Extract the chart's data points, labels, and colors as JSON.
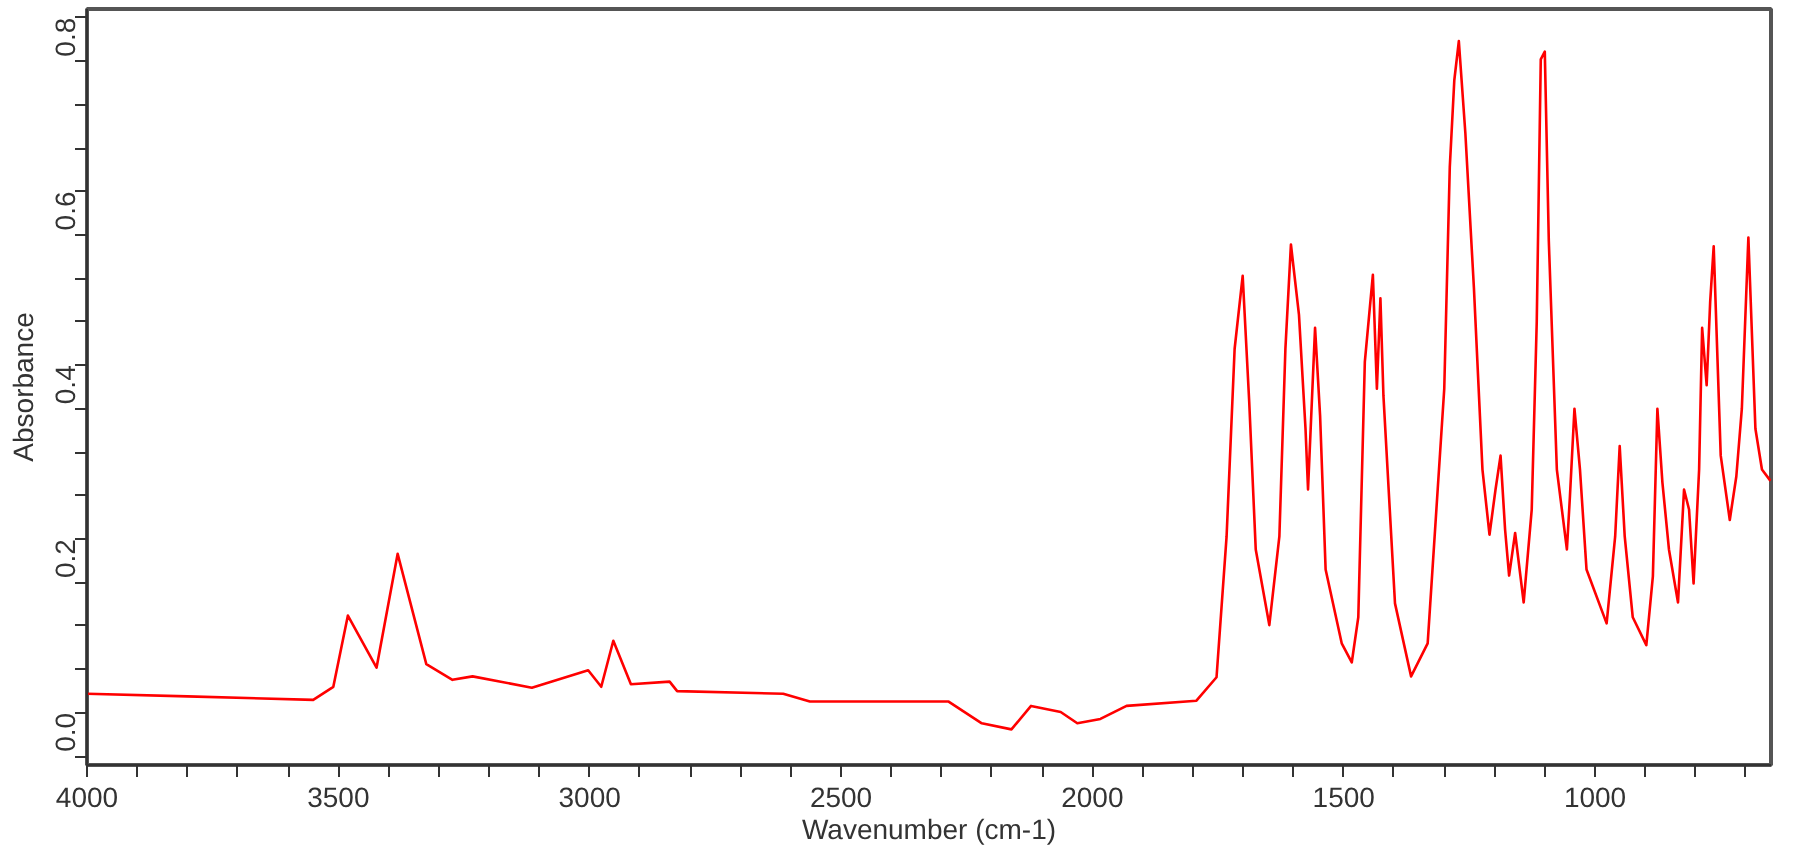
{
  "chart_data": {
    "type": "line",
    "xlabel": "Wavenumber (cm-1)",
    "ylabel": "Absorbance",
    "xlim": [
      4000,
      650
    ],
    "ylim": [
      -0.06,
      0.81
    ],
    "xticks": [
      4000,
      {
        "value": 3900,
        "label": null
      },
      {
        "value": 3800,
        "label": null
      },
      {
        "value": 3700,
        "label": null
      },
      {
        "value": 3600,
        "label": null
      },
      3500,
      {
        "value": 3400,
        "label": null
      },
      {
        "value": 3300,
        "label": null
      },
      {
        "value": 3200,
        "label": null
      },
      {
        "value": 3100,
        "label": null
      },
      3000,
      {
        "value": 2900,
        "label": null
      },
      {
        "value": 2800,
        "label": null
      },
      {
        "value": 2700,
        "label": null
      },
      {
        "value": 2600,
        "label": null
      },
      2500,
      {
        "value": 2400,
        "label": null
      },
      {
        "value": 2300,
        "label": null
      },
      {
        "value": 2200,
        "label": null
      },
      {
        "value": 2100,
        "label": null
      },
      2000,
      {
        "value": 1900,
        "label": null
      },
      {
        "value": 1800,
        "label": null
      },
      {
        "value": 1700,
        "label": null
      },
      {
        "value": 1600,
        "label": null
      },
      1500,
      {
        "value": 1400,
        "label": null
      },
      {
        "value": 1300,
        "label": null
      },
      {
        "value": 1200,
        "label": null
      },
      {
        "value": 1100,
        "label": null
      },
      1000,
      {
        "value": 900,
        "label": null
      },
      {
        "value": 800,
        "label": null
      },
      {
        "value": 700,
        "label": null
      }
    ],
    "yticks": [
      {
        "value": -0.05,
        "label": null
      },
      {
        "value": 0,
        "label": "0.0"
      },
      {
        "value": 0.05,
        "label": null
      },
      {
        "value": 0.1,
        "label": null
      },
      {
        "value": 0.15,
        "label": null
      },
      0.2,
      {
        "value": 0.25,
        "label": null
      },
      {
        "value": 0.3,
        "label": null
      },
      {
        "value": 0.35,
        "label": null
      },
      0.4,
      {
        "value": 0.45,
        "label": null
      },
      {
        "value": 0.5,
        "label": null
      },
      {
        "value": 0.55,
        "label": null
      },
      0.6,
      {
        "value": 0.65,
        "label": null
      },
      {
        "value": 0.7,
        "label": null
      },
      {
        "value": 0.75,
        "label": null
      },
      0.8
    ],
    "grid": false,
    "marker": "none",
    "line_style": "solid",
    "x": [
      4000,
      3800,
      3550,
      3510,
      3481,
      3424,
      3382,
      3325,
      3273,
      3233,
      3115,
      3003,
      2977,
      2953,
      2918,
      2841,
      2826,
      2615,
      2562,
      2286,
      2220,
      2161,
      2122,
      2063,
      2030,
      1984,
      1932,
      1793,
      1753,
      1733,
      1717,
      1701,
      1688,
      1675,
      1648,
      1628,
      1616,
      1605,
      1589,
      1576,
      1571,
      1557,
      1547,
      1536,
      1504,
      1484,
      1471,
      1458,
      1442,
      1434,
      1427,
      1421,
      1398,
      1366,
      1333,
      1300,
      1289,
      1280,
      1271,
      1258,
      1241,
      1224,
      1210,
      1198,
      1188,
      1179,
      1171,
      1159,
      1142,
      1126,
      1116,
      1108,
      1100,
      1092,
      1076,
      1056,
      1050,
      1041,
      1030,
      1017,
      977,
      960,
      951,
      941,
      925,
      898,
      885,
      876,
      866,
      853,
      835,
      823,
      813,
      804,
      793,
      787,
      778,
      771,
      764,
      750,
      732,
      719,
      708,
      695,
      681,
      668,
      651
    ],
    "series": [
      {
        "color": "#ff0000",
        "values": [
          0.022,
          0.019,
          0.015,
          0.03,
          0.112,
          0.052,
          0.183,
          0.056,
          0.038,
          0.042,
          0.029,
          0.049,
          0.03,
          0.083,
          0.033,
          0.036,
          0.025,
          0.022,
          0.013,
          0.013,
          -0.012,
          -0.019,
          0.008,
          0.001,
          -0.012,
          -0.007,
          0.008,
          0.014,
          0.041,
          0.203,
          0.419,
          0.503,
          0.358,
          0.188,
          0.101,
          0.203,
          0.419,
          0.539,
          0.458,
          0.327,
          0.257,
          0.443,
          0.342,
          0.165,
          0.08,
          0.058,
          0.11,
          0.404,
          0.504,
          0.373,
          0.477,
          0.365,
          0.126,
          0.042,
          0.08,
          0.373,
          0.628,
          0.728,
          0.773,
          0.667,
          0.489,
          0.28,
          0.205,
          0.257,
          0.296,
          0.211,
          0.158,
          0.207,
          0.127,
          0.234,
          0.45,
          0.752,
          0.761,
          0.543,
          0.28,
          0.188,
          0.249,
          0.35,
          0.28,
          0.165,
          0.103,
          0.203,
          0.307,
          0.203,
          0.11,
          0.078,
          0.157,
          0.35,
          0.265,
          0.188,
          0.127,
          0.257,
          0.234,
          0.149,
          0.28,
          0.443,
          0.377,
          0.473,
          0.537,
          0.296,
          0.222,
          0.272,
          0.35,
          0.547,
          0.327,
          0.28,
          0.267
        ]
      }
    ]
  }
}
